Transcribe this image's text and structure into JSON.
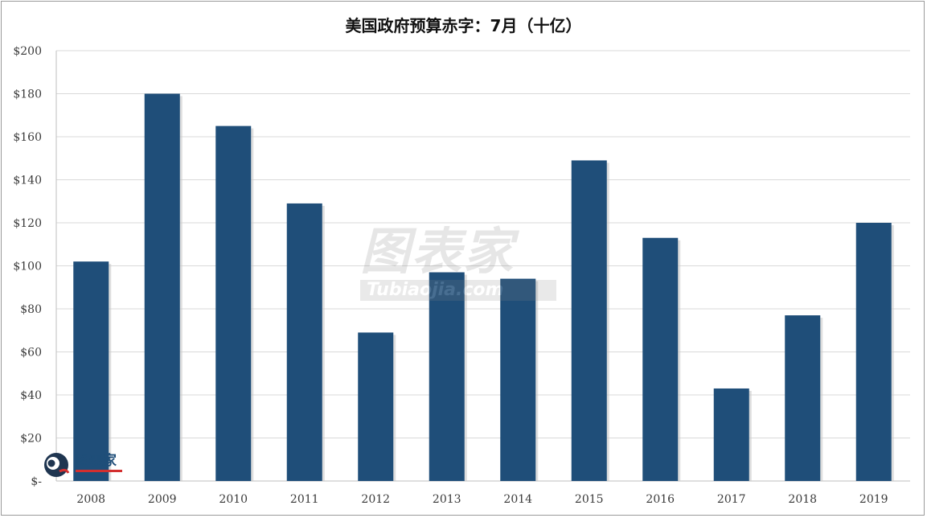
{
  "chart_data": {
    "type": "bar",
    "title": "美国政府预算赤字：7月（十亿）",
    "categories": [
      "2008",
      "2009",
      "2010",
      "2011",
      "2012",
      "2013",
      "2014",
      "2015",
      "2016",
      "2017",
      "2018",
      "2019"
    ],
    "values": [
      102,
      180,
      165,
      129,
      69,
      97,
      94,
      149,
      113,
      43,
      77,
      120
    ],
    "ylim": [
      0,
      200
    ],
    "yticks": [
      0,
      20,
      40,
      60,
      80,
      100,
      120,
      140,
      160,
      180,
      200
    ],
    "ytick_labels": [
      "$-",
      "$20",
      "$40",
      "$60",
      "$80",
      "$100",
      "$120",
      "$140",
      "$160",
      "$180",
      "$200"
    ],
    "xlabel": "",
    "ylabel": "",
    "grid": true,
    "legend": "none",
    "bar_color": "#1f4e79"
  },
  "watermark": {
    "main": "图表家",
    "sub": "Tubiaojia.com"
  },
  "logo": {
    "text": "图表家"
  }
}
